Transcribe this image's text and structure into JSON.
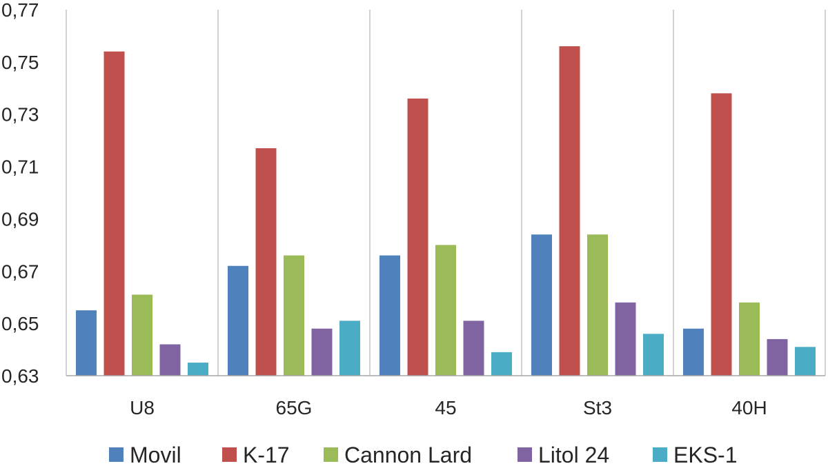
{
  "chart_data": {
    "type": "bar",
    "title": "",
    "xlabel": "",
    "ylabel": "",
    "categories": [
      "U8",
      "65G",
      "45",
      "St3",
      "40H"
    ],
    "series": [
      {
        "name": "Movil",
        "color": "#4F81BD",
        "values": [
          0.655,
          0.672,
          0.676,
          0.684,
          0.648
        ]
      },
      {
        "name": "K-17",
        "color": "#C0504D",
        "values": [
          0.754,
          0.717,
          0.736,
          0.756,
          0.738
        ]
      },
      {
        "name": "Cannon Lard",
        "color": "#9BBB59",
        "values": [
          0.661,
          0.676,
          0.68,
          0.684,
          0.658
        ]
      },
      {
        "name": "Litol 24",
        "color": "#8064A2",
        "values": [
          0.642,
          0.648,
          0.651,
          0.658,
          0.644
        ]
      },
      {
        "name": "EKS-1",
        "color": "#4BACC6",
        "values": [
          0.635,
          0.651,
          0.639,
          0.646,
          0.641
        ]
      }
    ],
    "ylim": [
      0.63,
      0.77
    ],
    "yticks": [
      "0,63",
      "0,65",
      "0,67",
      "0,69",
      "0,71",
      "0,73",
      "0,75",
      "0,77"
    ],
    "ytick_values": [
      0.63,
      0.65,
      0.67,
      0.69,
      0.71,
      0.73,
      0.75,
      0.77
    ],
    "grid": "vertical category separators",
    "legend_position": "bottom"
  }
}
